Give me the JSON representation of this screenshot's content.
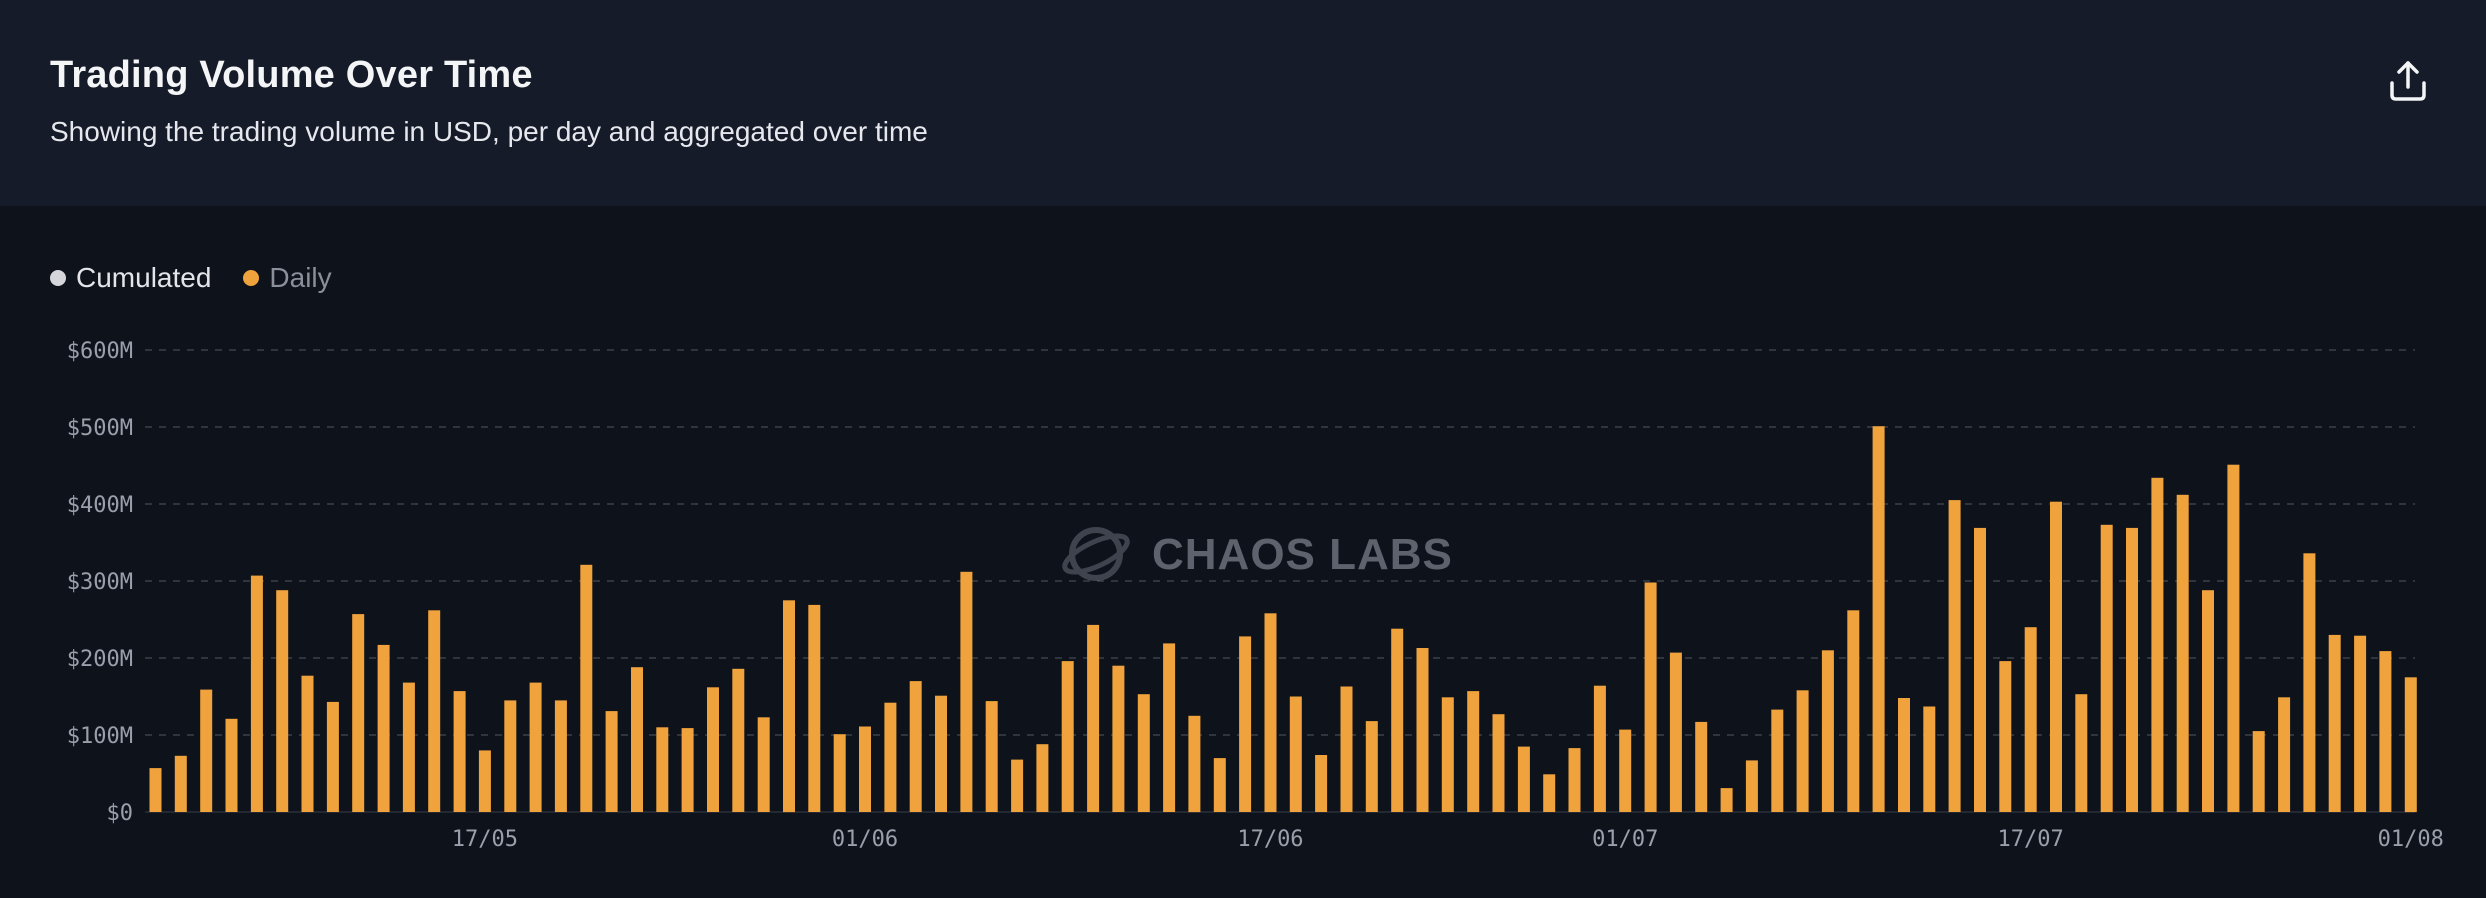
{
  "header": {
    "title": "Trading Volume Over Time",
    "subtitle": "Showing the trading volume in USD, per day and aggregated over time",
    "share_icon": "share-upload-icon"
  },
  "legend": [
    {
      "label": "Cumulated",
      "color": "#d4d6db",
      "active": false
    },
    {
      "label": "Daily",
      "color": "#f0a23c",
      "active": true
    }
  ],
  "watermark": {
    "text": "CHAOS LABS",
    "icon": "chaos-labs-logo-icon"
  },
  "colors": {
    "bar": "#f0a23c",
    "grid": "#3a3f4b",
    "axis_text": "#9aa0ab"
  },
  "chart_data": {
    "type": "bar",
    "ylabel": "",
    "xlabel": "",
    "ylim": [
      0,
      600
    ],
    "y_unit": "millions USD",
    "y_ticks": [
      0,
      100,
      200,
      300,
      400,
      500,
      600
    ],
    "y_tick_labels": [
      "$0",
      "$100M",
      "$200M",
      "$300M",
      "$400M",
      "$500M",
      "$600M"
    ],
    "x_tick_labels": [
      {
        "label": "17/05",
        "bar_index": 13
      },
      {
        "label": "01/06",
        "bar_index": 28
      },
      {
        "label": "17/06",
        "bar_index": 44
      },
      {
        "label": "01/07",
        "bar_index": 58
      },
      {
        "label": "17/07",
        "bar_index": 74
      },
      {
        "label": "01/08",
        "bar_index": 89
      }
    ],
    "grid": true,
    "series": [
      {
        "name": "Daily",
        "values": [
          57,
          73,
          159,
          121,
          307,
          288,
          177,
          143,
          257,
          217,
          168,
          262,
          157,
          80,
          145,
          168,
          145,
          321,
          131,
          188,
          110,
          109,
          162,
          186,
          123,
          275,
          269,
          101,
          111,
          142,
          170,
          151,
          312,
          144,
          68,
          88,
          196,
          243,
          190,
          153,
          219,
          125,
          70,
          228,
          258,
          150,
          74,
          163,
          118,
          238,
          213,
          149,
          157,
          127,
          85,
          49,
          83,
          164,
          107,
          298,
          207,
          117,
          31,
          67,
          133,
          158,
          210,
          262,
          501,
          148,
          137,
          405,
          369,
          196,
          240,
          403,
          153,
          373,
          369,
          434,
          412,
          288,
          451,
          105,
          149,
          336,
          230,
          229,
          209,
          175
        ]
      }
    ]
  }
}
